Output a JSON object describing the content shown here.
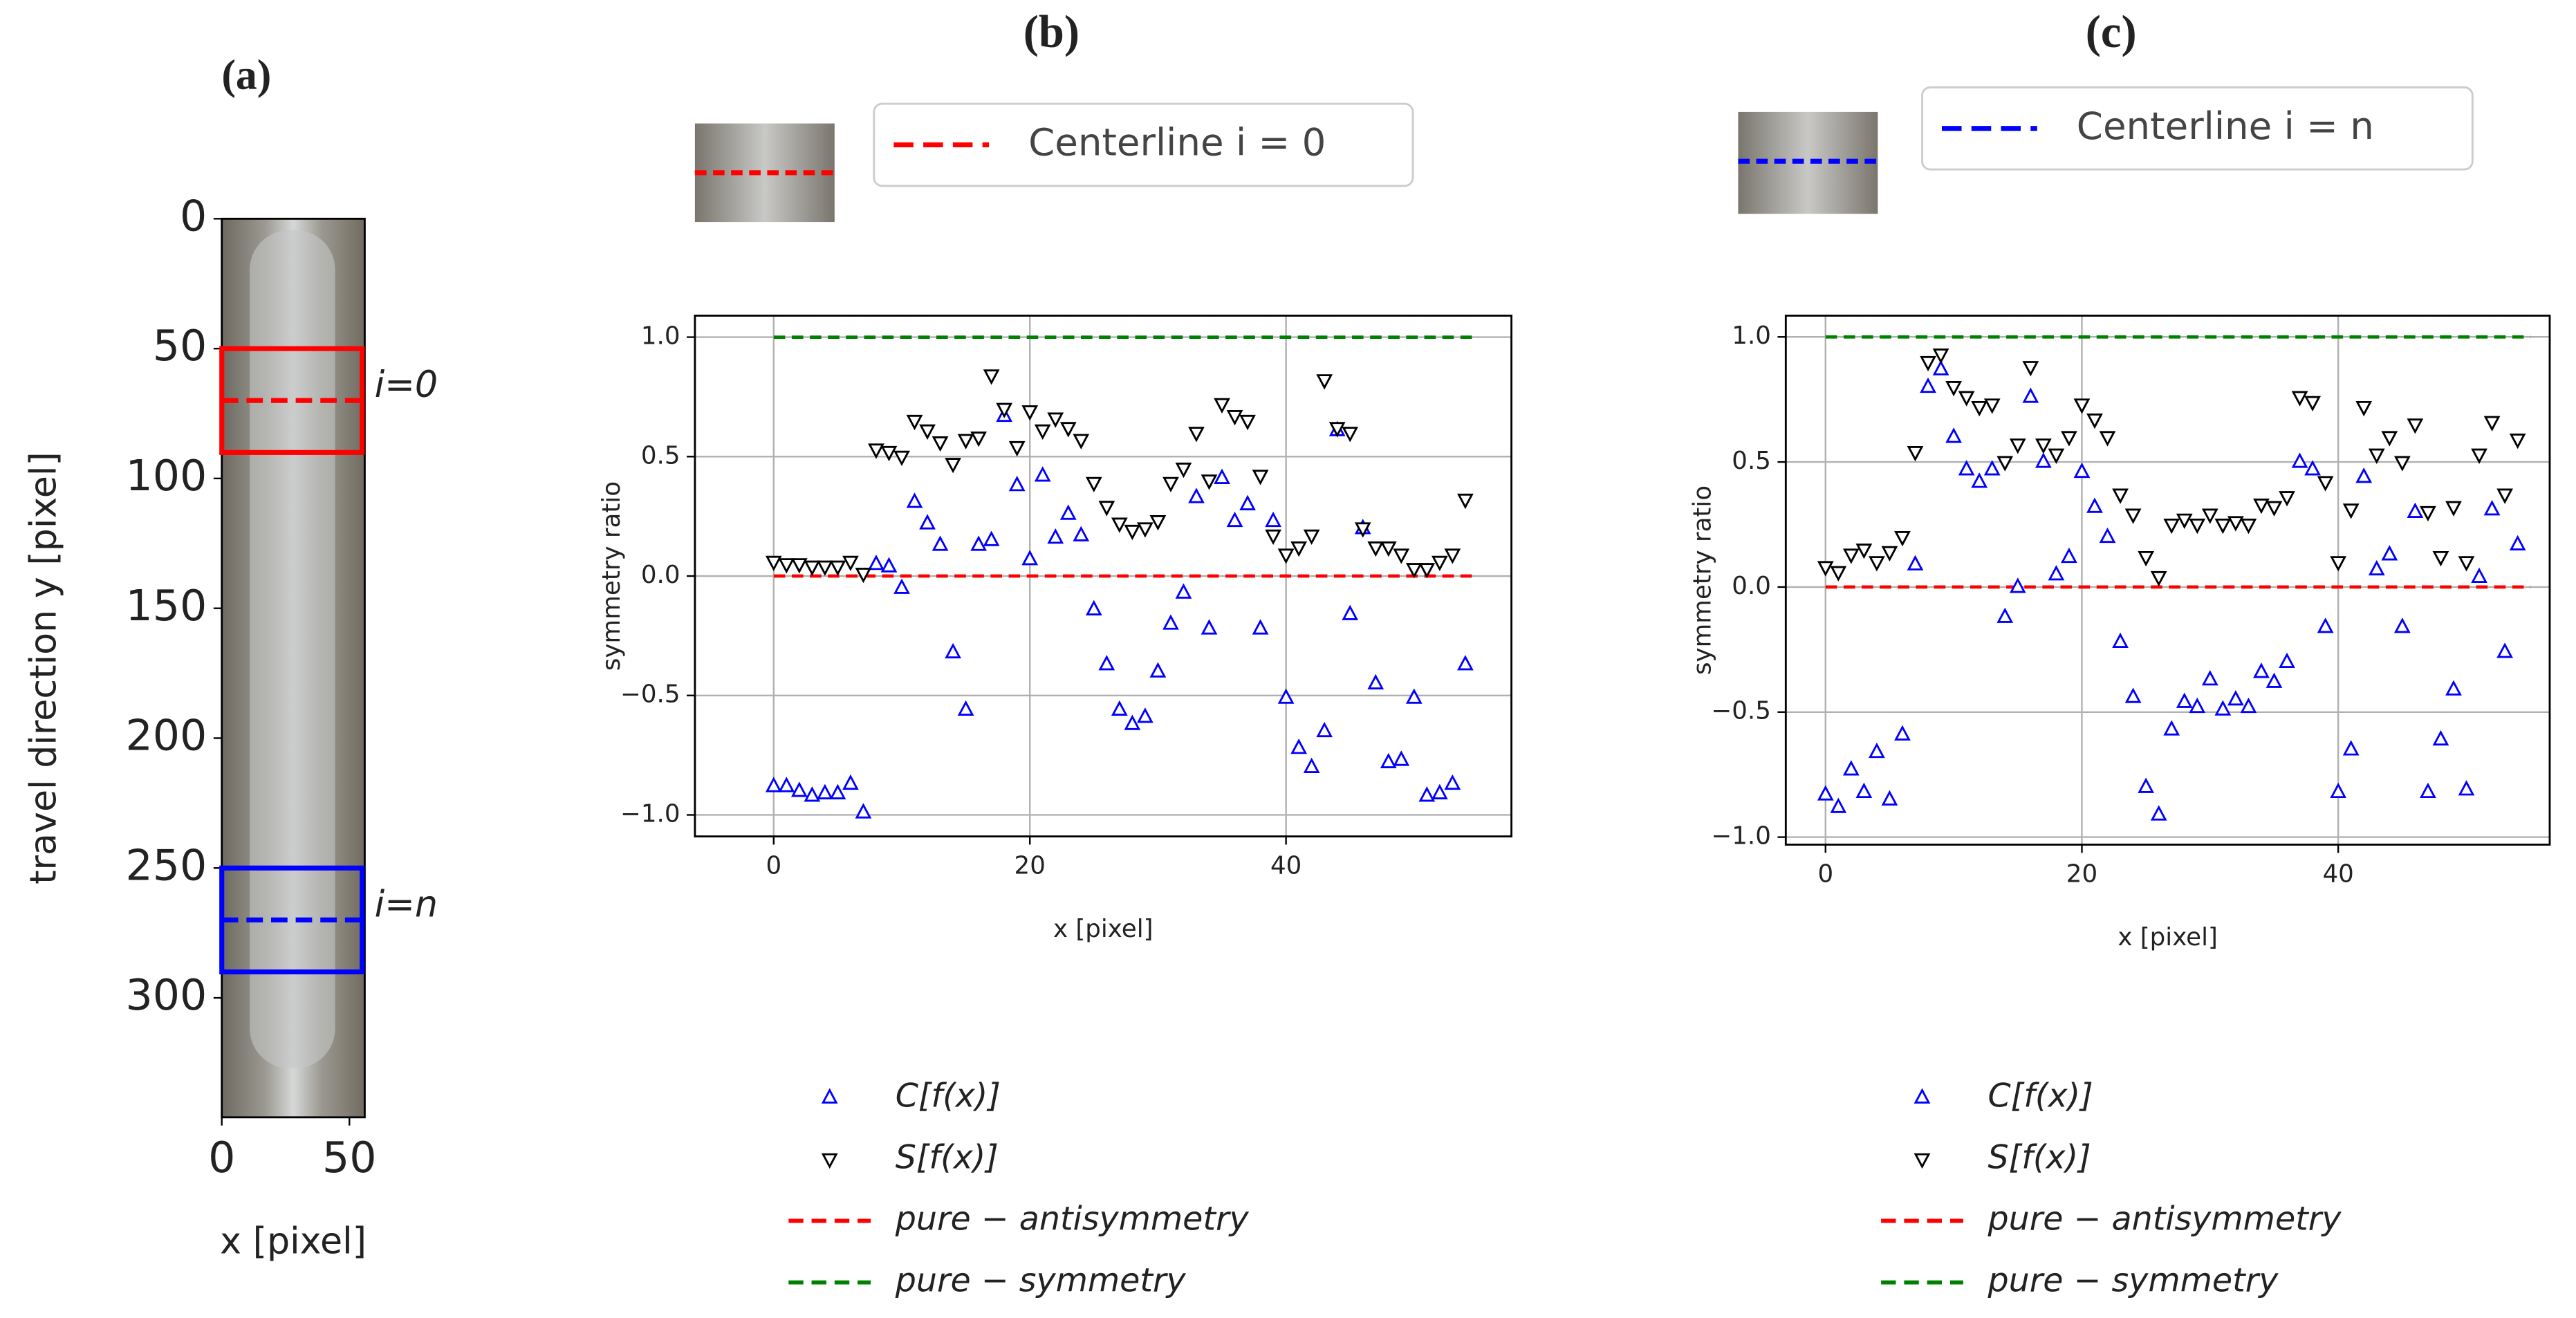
{
  "chart_data": [
    {
      "type": "image",
      "title": "(a)",
      "xlabel": "x [pixel]",
      "ylabel": "travel direction y [pixel]",
      "xlim": [
        0,
        56
      ],
      "ylim": [
        346,
        0
      ],
      "xticks": [
        0,
        50
      ],
      "yticks": [
        0,
        50,
        100,
        150,
        200,
        250,
        300
      ],
      "regions": [
        {
          "label": "i=0",
          "x0": 0,
          "x1": 55,
          "y0": 50,
          "y1": 90,
          "centerline": 70,
          "color": "#ff0000"
        },
        {
          "label": "i=n",
          "x0": 0,
          "x1": 55,
          "y0": 250,
          "y1": 290,
          "centerline": 270,
          "color": "#0000ff"
        }
      ]
    },
    {
      "type": "scatter",
      "title": "(b)",
      "xlabel": "x [pixel]",
      "ylabel": "symmetry ratio",
      "grid": true,
      "inset_legend": {
        "label": "Centerline i = 0",
        "color": "#ff0000"
      },
      "xlim": [
        -6.15,
        57.6
      ],
      "ylim": [
        -1.09,
        1.09
      ],
      "xticks": [
        0,
        20,
        40
      ],
      "yticks": [
        {
          "value": -1,
          "label": "−1.0"
        },
        {
          "value": -0.5,
          "label": "−0.5"
        },
        {
          "value": 0,
          "label": "0.0"
        },
        {
          "value": 0.5,
          "label": "0.5"
        },
        {
          "value": 1,
          "label": "1.0"
        }
      ],
      "x": [
        0,
        1,
        2,
        3,
        4,
        5,
        6,
        7,
        8,
        9,
        10,
        11,
        12,
        13,
        14,
        15,
        16,
        17,
        18,
        19,
        20,
        21,
        22,
        23,
        24,
        25,
        26,
        27,
        28,
        29,
        30,
        31,
        32,
        33,
        34,
        35,
        36,
        37,
        38,
        39,
        40,
        41,
        42,
        43,
        44,
        45,
        46,
        47,
        48,
        49,
        50,
        51,
        52,
        53,
        54
      ],
      "series": [
        {
          "name": "C[f(x)]",
          "color": "#0000ff",
          "marker": "^",
          "values": [
            -0.88,
            -0.88,
            -0.9,
            -0.92,
            -0.91,
            -0.91,
            -0.87,
            -0.99,
            0.05,
            0.04,
            -0.05,
            0.31,
            0.22,
            0.13,
            -0.32,
            -0.56,
            0.13,
            0.15,
            0.67,
            0.38,
            0.07,
            0.42,
            0.16,
            0.26,
            0.17,
            -0.14,
            -0.37,
            -0.56,
            -0.62,
            -0.59,
            -0.4,
            -0.2,
            -0.07,
            0.33,
            -0.22,
            0.41,
            0.23,
            0.3,
            -0.22,
            0.23,
            -0.51,
            -0.72,
            -0.8,
            -0.65,
            0.61,
            -0.16,
            0.2,
            -0.45,
            -0.78,
            -0.77,
            -0.51,
            -0.92,
            -0.91,
            -0.87,
            -0.37
          ]
        },
        {
          "name": "S[f(x)]",
          "color": "#000000",
          "marker": "v",
          "values": [
            0.06,
            0.05,
            0.05,
            0.04,
            0.04,
            0.04,
            0.06,
            0.01,
            0.53,
            0.52,
            0.5,
            0.65,
            0.61,
            0.56,
            0.47,
            0.57,
            0.58,
            0.84,
            0.7,
            0.54,
            0.69,
            0.61,
            0.66,
            0.62,
            0.57,
            0.39,
            0.29,
            0.22,
            0.19,
            0.2,
            0.23,
            0.39,
            0.45,
            0.6,
            0.4,
            0.72,
            0.67,
            0.65,
            0.42,
            0.17,
            0.09,
            0.12,
            0.17,
            0.82,
            0.62,
            0.6,
            0.2,
            0.12,
            0.12,
            0.09,
            0.03,
            0.03,
            0.06,
            0.09,
            0.32
          ]
        }
      ],
      "reference_lines": [
        {
          "name": "pure − antisymmetry",
          "y": 0,
          "x": [
            0,
            55
          ],
          "color": "#ff0000"
        },
        {
          "name": "pure − symmetry",
          "y": 1,
          "x": [
            0,
            55
          ],
          "color": "#008000"
        }
      ]
    },
    {
      "type": "scatter",
      "title": "(c)",
      "xlabel": "x [pixel]",
      "ylabel": "symmetry ratio",
      "grid": true,
      "inset_legend": {
        "label": "Centerline i = n",
        "color": "#0000ff"
      },
      "xlim": [
        -3.1,
        56.5
      ],
      "ylim": [
        -1.03,
        1.085
      ],
      "xticks": [
        0,
        20,
        40
      ],
      "yticks": [
        {
          "value": -1,
          "label": "−1.0"
        },
        {
          "value": -0.5,
          "label": "−0.5"
        },
        {
          "value": 0,
          "label": "0.0"
        },
        {
          "value": 0.5,
          "label": "0.5"
        },
        {
          "value": 1,
          "label": "1.0"
        }
      ],
      "x": [
        0,
        1,
        2,
        3,
        4,
        5,
        6,
        7,
        8,
        9,
        10,
        11,
        12,
        13,
        14,
        15,
        16,
        17,
        18,
        19,
        20,
        21,
        22,
        23,
        24,
        25,
        26,
        27,
        28,
        29,
        30,
        31,
        32,
        33,
        34,
        35,
        36,
        37,
        38,
        39,
        40,
        41,
        42,
        43,
        44,
        45,
        46,
        47,
        48,
        49,
        50,
        51,
        52,
        53,
        54
      ],
      "series": [
        {
          "name": "C[f(x)]",
          "color": "#0000ff",
          "marker": "^",
          "values": [
            -0.83,
            -0.88,
            -0.73,
            -0.82,
            -0.66,
            -0.85,
            -0.59,
            0.09,
            0.8,
            0.87,
            0.6,
            0.47,
            0.42,
            0.47,
            -0.12,
            0.0,
            0.76,
            0.5,
            0.05,
            0.12,
            0.46,
            0.32,
            0.2,
            -0.22,
            -0.44,
            -0.8,
            -0.91,
            -0.57,
            -0.46,
            -0.48,
            -0.37,
            -0.49,
            -0.45,
            -0.48,
            -0.34,
            -0.38,
            -0.3,
            0.5,
            0.47,
            -0.16,
            -0.82,
            -0.65,
            0.44,
            0.07,
            0.13,
            -0.16,
            0.3,
            -0.82,
            -0.61,
            -0.41,
            -0.81,
            0.04,
            0.31,
            -0.26,
            0.17
          ]
        },
        {
          "name": "S[f(x)]",
          "color": "#000000",
          "marker": "v",
          "values": [
            0.08,
            0.06,
            0.13,
            0.15,
            0.1,
            0.14,
            0.2,
            0.54,
            0.9,
            0.93,
            0.8,
            0.76,
            0.72,
            0.73,
            0.5,
            0.57,
            0.88,
            0.57,
            0.53,
            0.6,
            0.73,
            0.67,
            0.6,
            0.37,
            0.29,
            0.12,
            0.04,
            0.25,
            0.27,
            0.25,
            0.29,
            0.25,
            0.26,
            0.25,
            0.33,
            0.32,
            0.36,
            0.76,
            0.74,
            0.42,
            0.1,
            0.31,
            0.72,
            0.53,
            0.6,
            0.5,
            0.65,
            0.3,
            0.12,
            0.32,
            0.1,
            0.53,
            0.66,
            0.37,
            0.59
          ]
        }
      ],
      "reference_lines": [
        {
          "name": "pure − antisymmetry",
          "y": 0,
          "x": [
            0,
            55
          ],
          "color": "#ff0000"
        },
        {
          "name": "pure − symmetry",
          "y": 1,
          "x": [
            0,
            55
          ],
          "color": "#008000"
        }
      ]
    }
  ]
}
